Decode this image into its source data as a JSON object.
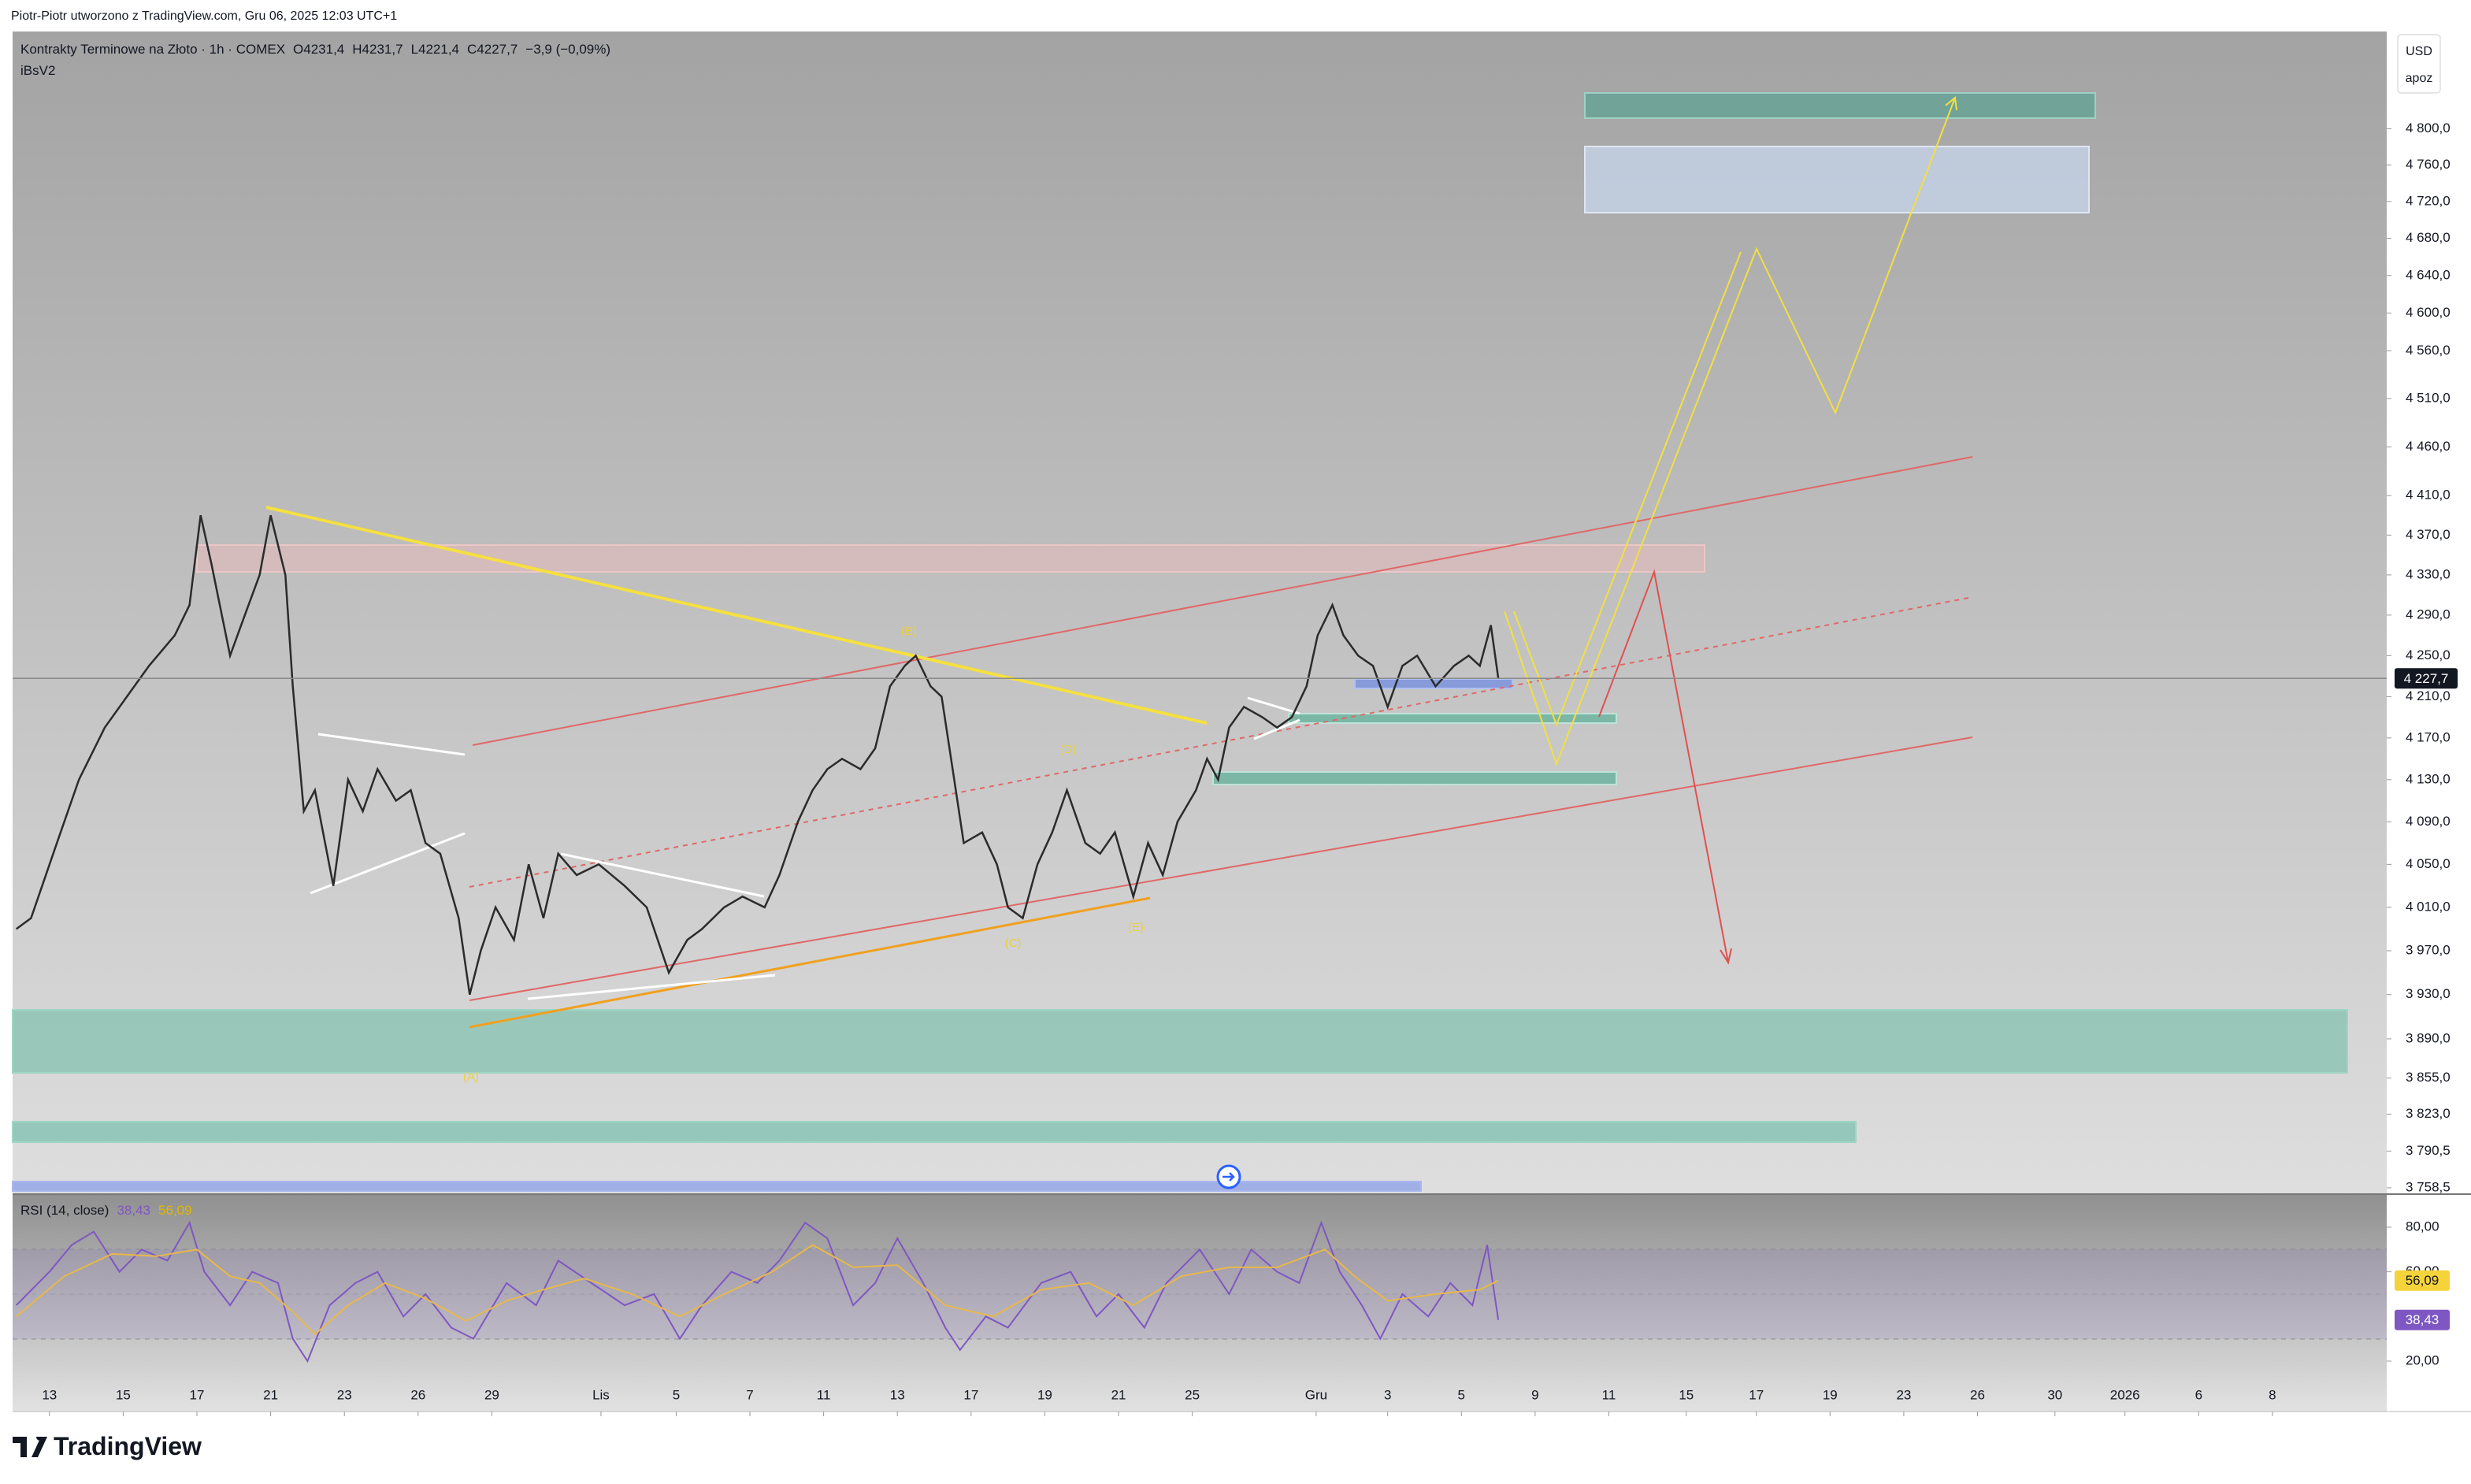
{
  "header": {
    "credit": "Piotr-Piotr utworzono z TradingView.com, Gru 06, 2025 12:03 UTC+1",
    "symbol": "Kontrakty Terminowe na Złoto · 1h · COMEX",
    "ohlc": [
      "O4231,4",
      "H4231,7",
      "L4221,4",
      "C4227,7"
    ],
    "change": "−3,9 (−0,09%)",
    "indicator": "iBsV2",
    "currency": "USD",
    "unit": "apoz",
    "logo": "TradingView"
  },
  "annotations": [
    "(B)",
    "(D)",
    "(C)",
    "(E)",
    "(A)"
  ],
  "chart_data": [
    {
      "type": "line",
      "log": true,
      "grid": false,
      "xlim": [
        -1,
        63.4
      ],
      "ylim": [
        3753,
        4909
      ],
      "last_price": {
        "value": 4227.7,
        "label": "4 227,7"
      },
      "xticks": [
        {
          "value": 0,
          "label": "13"
        },
        {
          "value": 2,
          "label": "15"
        },
        {
          "value": 4,
          "label": "17"
        },
        {
          "value": 6,
          "label": "21"
        },
        {
          "value": 8,
          "label": "23"
        },
        {
          "value": 10,
          "label": "26"
        },
        {
          "value": 12,
          "label": "29"
        },
        {
          "value": 14.96,
          "label": "Lis"
        },
        {
          "value": 17,
          "label": "5"
        },
        {
          "value": 19,
          "label": "7"
        },
        {
          "value": 21,
          "label": "11"
        },
        {
          "value": 23,
          "label": "13"
        },
        {
          "value": 25,
          "label": "17"
        },
        {
          "value": 27,
          "label": "19"
        },
        {
          "value": 29,
          "label": "21"
        },
        {
          "value": 31,
          "label": "25"
        },
        {
          "value": 34.36,
          "label": "Gru"
        },
        {
          "value": 36.3,
          "label": "3"
        },
        {
          "value": 38.3,
          "label": "5"
        },
        {
          "value": 40.3,
          "label": "9"
        },
        {
          "value": 42.3,
          "label": "11"
        },
        {
          "value": 44.4,
          "label": "15"
        },
        {
          "value": 46.3,
          "label": "17"
        },
        {
          "value": 48.3,
          "label": "19"
        },
        {
          "value": 50.3,
          "label": "23"
        },
        {
          "value": 52.3,
          "label": "26"
        },
        {
          "value": 54.4,
          "label": "30"
        },
        {
          "value": 56.3,
          "label": "2026"
        },
        {
          "value": 58.3,
          "label": "6"
        },
        {
          "value": 60.3,
          "label": "8"
        }
      ],
      "yticks": [
        {
          "value": 4800,
          "label": "4 800,0"
        },
        {
          "value": 4760,
          "label": "4 760,0"
        },
        {
          "value": 4720,
          "label": "4 720,0"
        },
        {
          "value": 4680,
          "label": "4 680,0"
        },
        {
          "value": 4640,
          "label": "4 640,0"
        },
        {
          "value": 4600,
          "label": "4 600,0"
        },
        {
          "value": 4560,
          "label": "4 560,0"
        },
        {
          "value": 4510,
          "label": "4 510,0"
        },
        {
          "value": 4460,
          "label": "4 460,0"
        },
        {
          "value": 4410,
          "label": "4 410,0"
        },
        {
          "value": 4370,
          "label": "4 370,0"
        },
        {
          "value": 4330,
          "label": "4 330,0"
        },
        {
          "value": 4290,
          "label": "4 290,0"
        },
        {
          "value": 4250,
          "label": "4 250,0"
        },
        {
          "value": 4210,
          "label": "4 210,0"
        },
        {
          "value": 4170,
          "label": "4 170,0"
        },
        {
          "value": 4130,
          "label": "4 130,0"
        },
        {
          "value": 4090,
          "label": "4 090,0"
        },
        {
          "value": 4050,
          "label": "4 050,0"
        },
        {
          "value": 4010,
          "label": "4 010,0"
        },
        {
          "value": 3970,
          "label": "3 970,0"
        },
        {
          "value": 3930,
          "label": "3 930,0"
        },
        {
          "value": 3890,
          "label": "3 890,0"
        },
        {
          "value": 3855,
          "label": "3 855,0"
        },
        {
          "value": 3823,
          "label": "3 823,0"
        },
        {
          "value": 3790.5,
          "label": "3 790,5"
        },
        {
          "value": 3758.5,
          "label": "3 758,5"
        }
      ],
      "series": [
        {
          "color": "#2b2b2b",
          "x": [
            -0.9,
            -0.5,
            0.2,
            0.8,
            1.5,
            2.1,
            2.7,
            3.4,
            3.8,
            4.1,
            4.4,
            4.9,
            5.3,
            5.7,
            6.0,
            6.4,
            6.6,
            6.9,
            7.2,
            7.7,
            8.1,
            8.5,
            8.9,
            9.4,
            9.8,
            10.2,
            10.6,
            11.1,
            11.4,
            11.7,
            12.1,
            12.6,
            13.0,
            13.4,
            13.8,
            14.3,
            14.9,
            15.6,
            16.2,
            16.8,
            17.3,
            17.7,
            18.3,
            18.8,
            19.4,
            19.8,
            20.3,
            20.7,
            21.1,
            21.5,
            22.0,
            22.4,
            22.8,
            23.2,
            23.5,
            23.9,
            24.2,
            24.5,
            24.8,
            25.3,
            25.7,
            26.0,
            26.4,
            26.8,
            27.2,
            27.6,
            28.1,
            28.5,
            28.9,
            29.4,
            29.8,
            30.2,
            30.6,
            31.1,
            31.4,
            31.7,
            32.0,
            32.4,
            32.9,
            33.3,
            33.7,
            34.1,
            34.4,
            34.8,
            35.1,
            35.5,
            35.9,
            36.3,
            36.7,
            37.1,
            37.6,
            38.1,
            38.5,
            38.8,
            39.1,
            39.3
          ],
          "values": [
            3990,
            4000,
            4070,
            4130,
            4180,
            4210,
            4240,
            4270,
            4300,
            4390,
            4340,
            4250,
            4290,
            4330,
            4390,
            4330,
            4220,
            4100,
            4120,
            4030,
            4130,
            4100,
            4140,
            4110,
            4120,
            4070,
            4060,
            4000,
            3930,
            3970,
            4010,
            3980,
            4050,
            4000,
            4060,
            4040,
            4050,
            4030,
            4010,
            3950,
            3980,
            3990,
            4010,
            4020,
            4010,
            4040,
            4090,
            4120,
            4140,
            4150,
            4140,
            4160,
            4220,
            4240,
            4250,
            4220,
            4210,
            4140,
            4070,
            4080,
            4050,
            4010,
            4000,
            4050,
            4080,
            4120,
            4070,
            4060,
            4080,
            4020,
            4070,
            4040,
            4090,
            4120,
            4150,
            4130,
            4180,
            4200,
            4190,
            4180,
            4190,
            4220,
            4270,
            4300,
            4270,
            4250,
            4240,
            4200,
            4240,
            4250,
            4220,
            4240,
            4250,
            4240,
            4280,
            4228
          ]
        }
      ]
    },
    {
      "type": "line",
      "title": "RSI (14, close)",
      "xlim": [
        -1,
        63.4
      ],
      "ylim": [
        -2.6,
        94.8
      ],
      "yticks": [
        {
          "value": 80,
          "label": "80,00"
        },
        {
          "value": 60,
          "label": "60,00"
        },
        {
          "value": 20,
          "label": "20,00"
        }
      ],
      "last_values": [
        {
          "value": 38.43,
          "label": "38,43",
          "color": "#7e57c2"
        },
        {
          "value": 56.09,
          "label": "56,09",
          "color": "#f5d33a"
        }
      ],
      "series": [
        {
          "color": "#7e57c2",
          "x": [
            -0.9,
            0.0,
            0.6,
            1.2,
            1.9,
            2.5,
            3.2,
            3.8,
            4.2,
            4.9,
            5.5,
            6.2,
            6.6,
            7.0,
            7.6,
            8.3,
            8.9,
            9.6,
            10.2,
            10.9,
            11.5,
            12.4,
            13.2,
            13.8,
            14.7,
            15.6,
            16.4,
            17.1,
            17.7,
            18.5,
            19.2,
            19.8,
            20.5,
            21.1,
            21.8,
            22.4,
            23.0,
            23.7,
            24.3,
            24.7,
            25.4,
            26.0,
            26.9,
            27.7,
            28.4,
            29.0,
            29.7,
            30.3,
            31.2,
            32.0,
            32.6,
            33.3,
            33.9,
            34.5,
            35.0,
            35.6,
            36.1,
            36.7,
            37.4,
            38.0,
            38.6,
            39.0,
            39.3
          ],
          "values": [
            45,
            60,
            72,
            78,
            60,
            70,
            65,
            82,
            60,
            45,
            60,
            55,
            30,
            20,
            45,
            55,
            60,
            40,
            50,
            35,
            30,
            55,
            45,
            65,
            55,
            45,
            50,
            30,
            45,
            60,
            55,
            65,
            82,
            75,
            45,
            55,
            75,
            55,
            35,
            25,
            40,
            35,
            55,
            60,
            40,
            50,
            35,
            55,
            70,
            50,
            70,
            60,
            55,
            82,
            60,
            45,
            30,
            50,
            40,
            55,
            45,
            72,
            38.43
          ]
        },
        {
          "color": "#e8b84a",
          "x": [
            -0.9,
            0.4,
            1.7,
            2.9,
            4.0,
            4.9,
            5.7,
            6.6,
            7.2,
            8.1,
            9.1,
            10.2,
            11.3,
            12.4,
            13.4,
            14.5,
            15.8,
            17.1,
            18.3,
            19.6,
            20.7,
            21.8,
            23.0,
            24.3,
            25.6,
            26.9,
            28.2,
            29.4,
            30.7,
            32.0,
            33.3,
            34.6,
            35.4,
            36.3,
            37.6,
            38.8,
            39.3
          ],
          "values": [
            40,
            58,
            68,
            67,
            70,
            58,
            55,
            42,
            32,
            45,
            55,
            48,
            38,
            47,
            52,
            57,
            50,
            40,
            50,
            60,
            72,
            62,
            63,
            45,
            40,
            52,
            55,
            45,
            58,
            62,
            62,
            70,
            58,
            47,
            50,
            52,
            56.09
          ]
        }
      ]
    }
  ]
}
